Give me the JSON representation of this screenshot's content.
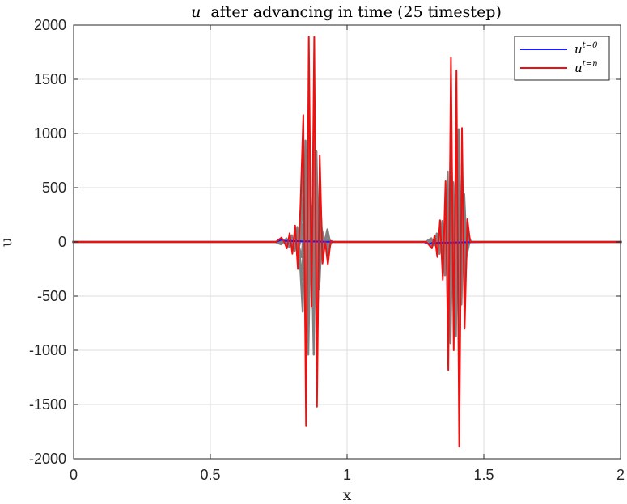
{
  "chart_data": {
    "type": "line",
    "title": {
      "var": "u",
      "rest": "after advancing in time (25 timestep)"
    },
    "xlabel": "x",
    "ylabel": "u",
    "xlim": [
      0,
      2
    ],
    "ylim": [
      -2000,
      2000
    ],
    "x_ticks": [
      "0",
      "0.5",
      "1",
      "1.5",
      "2"
    ],
    "x_tick_values": [
      0,
      0.5,
      1,
      1.5,
      2
    ],
    "y_ticks": [
      "2000",
      "1500",
      "1000",
      "500",
      "0",
      "-500",
      "-1000",
      "-1500",
      "-2000"
    ],
    "y_tick_values": [
      2000,
      1500,
      1000,
      500,
      0,
      -500,
      -1000,
      -1500,
      -2000
    ],
    "grid": true,
    "legend_position": "top-right",
    "legend": [
      {
        "base": "u",
        "sup": "t=0",
        "color": "#1a1aff"
      },
      {
        "base": "u",
        "sup": "t=n",
        "color": "#ee1111"
      }
    ],
    "series": [
      {
        "name": "u^{t=0}",
        "color": "#1a1aff",
        "x": [
          0,
          0.74,
          0.75,
          0.76,
          0.77,
          0.96,
          1.28,
          1.29,
          1.3,
          1.31,
          1.5,
          2
        ],
        "y": [
          0,
          0,
          10,
          20,
          10,
          0,
          0,
          -10,
          -20,
          -10,
          0,
          0
        ]
      },
      {
        "name": "u^{t=n}",
        "color": "#ee1111",
        "x": [
          0,
          0.74,
          0.75,
          0.76,
          0.77,
          0.78,
          0.79,
          0.8,
          0.81,
          0.82,
          0.83,
          0.84,
          0.85,
          0.86,
          0.87,
          0.88,
          0.89,
          0.9,
          0.91,
          0.92,
          0.93,
          0.94,
          0.95,
          0.96,
          1.28,
          1.29,
          1.3,
          1.31,
          1.32,
          1.33,
          1.34,
          1.35,
          1.36,
          1.37,
          1.38,
          1.39,
          1.4,
          1.41,
          1.42,
          1.43,
          1.44,
          1.45,
          1.46,
          1.47,
          1.48,
          1.49,
          1.5,
          2
        ],
        "y": [
          0,
          0,
          20,
          40,
          0,
          -60,
          80,
          -110,
          150,
          -250,
          350,
          1170,
          -1700,
          1890,
          -600,
          1890,
          -1520,
          800,
          -200,
          0,
          -210,
          10,
          0,
          0,
          0,
          0,
          -30,
          -60,
          60,
          -140,
          200,
          -350,
          560,
          -1180,
          1700,
          -1000,
          1580,
          -1890,
          1050,
          -800,
          210,
          0,
          0,
          0,
          0,
          0,
          0,
          0
        ]
      }
    ]
  }
}
